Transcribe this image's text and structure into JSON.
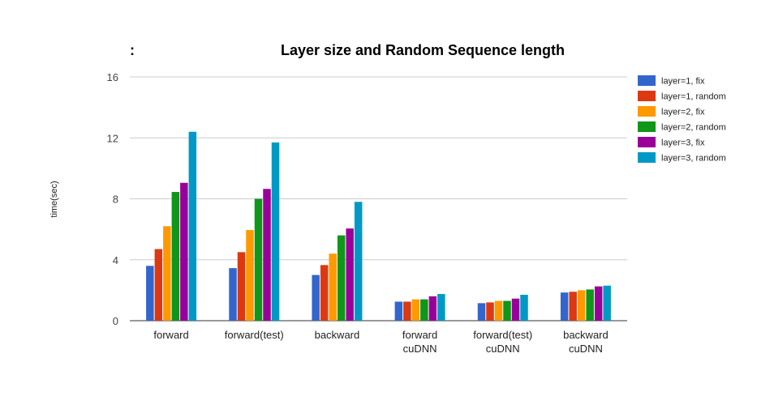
{
  "chart_data": {
    "type": "bar",
    "title_prefix": ":",
    "title": "Layer size and Random Sequence length",
    "ylabel": "time(sec)",
    "xlabel": "",
    "ylim": [
      0,
      16
    ],
    "yticks": [
      0,
      4,
      8,
      12,
      16
    ],
    "grid": true,
    "legend_position": "right",
    "categories": [
      [
        "forward"
      ],
      [
        "forward(test)"
      ],
      [
        "backward"
      ],
      [
        "forward",
        "cuDNN"
      ],
      [
        "forward(test)",
        "cuDNN"
      ],
      [
        "backward",
        "cuDNN"
      ]
    ],
    "series": [
      {
        "name": "layer=1, fix",
        "color": "#3366cc",
        "values": [
          3.6,
          3.45,
          3.0,
          1.25,
          1.15,
          1.85
        ]
      },
      {
        "name": "layer=1, random",
        "color": "#dc3912",
        "values": [
          4.7,
          4.5,
          3.65,
          1.25,
          1.2,
          1.9
        ]
      },
      {
        "name": "layer=2, fix",
        "color": "#ff9900",
        "values": [
          6.2,
          5.95,
          4.4,
          1.4,
          1.3,
          2.0
        ]
      },
      {
        "name": "layer=2, random",
        "color": "#109618",
        "values": [
          8.45,
          8.0,
          5.6,
          1.4,
          1.3,
          2.05
        ]
      },
      {
        "name": "layer=3, fix",
        "color": "#990099",
        "values": [
          9.05,
          8.65,
          6.05,
          1.6,
          1.45,
          2.25
        ]
      },
      {
        "name": "layer=3, random",
        "color": "#0099c6",
        "values": [
          12.4,
          11.7,
          7.8,
          1.75,
          1.7,
          2.3
        ]
      }
    ]
  }
}
